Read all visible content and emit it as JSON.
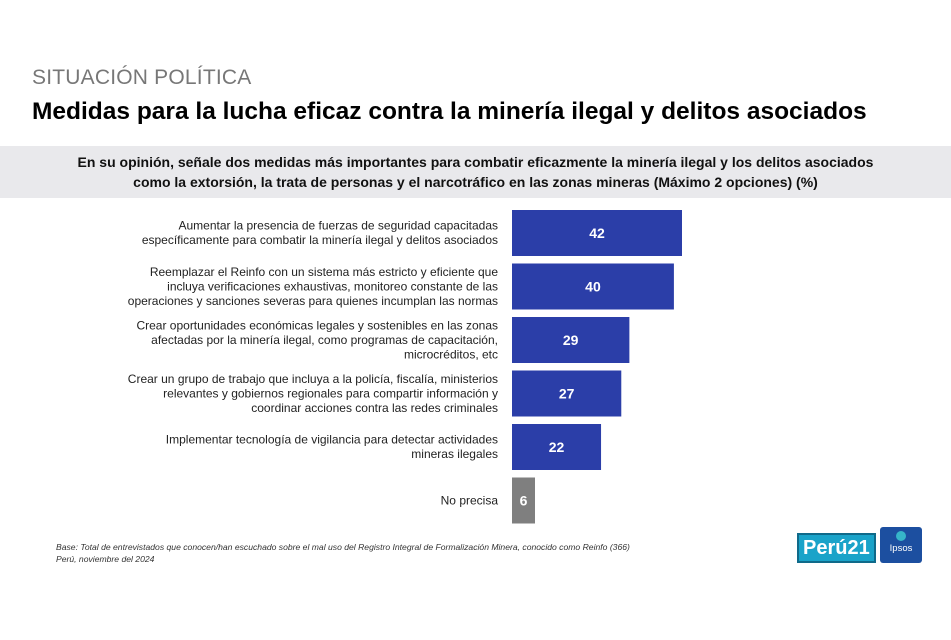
{
  "header": {
    "kicker": "SITUACIÓN POLÍTICA",
    "title": "Medidas para la lucha eficaz contra la minería ilegal y delitos asociados"
  },
  "question": {
    "line1": "En su opinión, señale dos medidas más importantes para combatir eficazmente la minería ilegal y los delitos asociados",
    "line2": "como la extorsión, la trata de personas y el narcotráfico en las zonas mineras (Máximo 2 opciones) (%)"
  },
  "chart_data": {
    "type": "bar",
    "orientation": "horizontal",
    "categories": [
      [
        "Aumentar la presencia de fuerzas de seguridad capacitadas",
        "específicamente para combatir la minería ilegal y delitos asociados"
      ],
      [
        "Reemplazar el Reinfo con un sistema más estricto y eficiente que",
        "incluya verificaciones exhaustivas, monitoreo constante de las",
        "operaciones y sanciones severas para quienes incumplan las normas"
      ],
      [
        "Crear oportunidades económicas legales y sostenibles en las zonas",
        "afectadas por la minería ilegal, como programas de capacitación,",
        "microcréditos, etc"
      ],
      [
        "Crear un grupo de trabajo que incluya a la policía, fiscalía, ministerios",
        "relevantes y gobiernos regionales para compartir información y",
        "coordinar acciones contra las redes criminales"
      ],
      [
        "Implementar tecnología de vigilancia para detectar actividades",
        "mineras ilegales"
      ],
      [
        "No precisa"
      ]
    ],
    "values": [
      42,
      40,
      29,
      27,
      22,
      6
    ],
    "colors": [
      "#2b3ea8",
      "#2b3ea8",
      "#2b3ea8",
      "#2b3ea8",
      "#2b3ea8",
      "#7f7f7f"
    ],
    "xlim": [
      0,
      42
    ],
    "grid": false,
    "legend": "none"
  },
  "footer": {
    "base_line1": "Base:  Total de entrevistados que conocen/han escuchado sobre el mal uso del Registro Integral de Formalización Minera, conocido como Reinfo (366)",
    "base_line2": "Perú, noviembre del 2024"
  },
  "logos": {
    "peru21": "Perú21",
    "ipsos": "Ipsos"
  }
}
